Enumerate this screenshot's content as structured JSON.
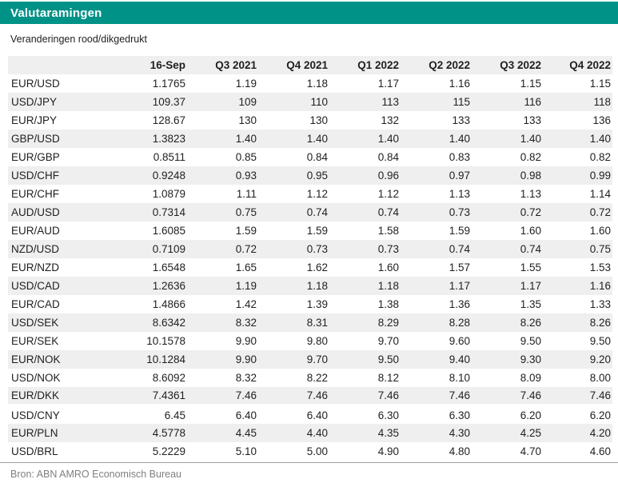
{
  "header": {
    "title": "Valutaramingen",
    "subtitle": "Veranderingen rood/dikgedrukt"
  },
  "colors": {
    "accent_teal": "#009286",
    "row_stripe": "#efefef",
    "title_text": "#ffffff",
    "body_text": "#1f1f1f",
    "source_text": "#7f7f7f"
  },
  "chart_data": {
    "type": "table",
    "title": "Valutaramingen",
    "note": "Veranderingen rood/dikgedrukt",
    "columns": [
      "",
      "16-Sep",
      "Q3 2021",
      "Q4 2021",
      "Q1 2022",
      "Q2 2022",
      "Q3 2022",
      "Q4 2022"
    ],
    "rows": [
      {
        "pair": "EUR/USD",
        "values": [
          "1.1765",
          "1.19",
          "1.18",
          "1.17",
          "1.16",
          "1.15",
          "1.15"
        ]
      },
      {
        "pair": "USD/JPY",
        "values": [
          "109.37",
          "109",
          "110",
          "113",
          "115",
          "116",
          "118"
        ]
      },
      {
        "pair": "EUR/JPY",
        "values": [
          "128.67",
          "130",
          "130",
          "132",
          "133",
          "133",
          "136"
        ]
      },
      {
        "pair": "GBP/USD",
        "values": [
          "1.3823",
          "1.40",
          "1.40",
          "1.40",
          "1.40",
          "1.40",
          "1.40"
        ]
      },
      {
        "pair": "EUR/GBP",
        "values": [
          "0.8511",
          "0.85",
          "0.84",
          "0.84",
          "0.83",
          "0.82",
          "0.82"
        ]
      },
      {
        "pair": "USD/CHF",
        "values": [
          "0.9248",
          "0.93",
          "0.95",
          "0.96",
          "0.97",
          "0.98",
          "0.99"
        ]
      },
      {
        "pair": "EUR/CHF",
        "values": [
          "1.0879",
          "1.11",
          "1.12",
          "1.12",
          "1.13",
          "1.13",
          "1.14"
        ]
      },
      {
        "pair": "AUD/USD",
        "values": [
          "0.7314",
          "0.75",
          "0.74",
          "0.74",
          "0.73",
          "0.72",
          "0.72"
        ]
      },
      {
        "pair": "EUR/AUD",
        "values": [
          "1.6085",
          "1.59",
          "1.59",
          "1.58",
          "1.59",
          "1.60",
          "1.60"
        ]
      },
      {
        "pair": "NZD/USD",
        "values": [
          "0.7109",
          "0.72",
          "0.73",
          "0.73",
          "0.74",
          "0.74",
          "0.75"
        ]
      },
      {
        "pair": "EUR/NZD",
        "values": [
          "1.6548",
          "1.65",
          "1.62",
          "1.60",
          "1.57",
          "1.55",
          "1.53"
        ]
      },
      {
        "pair": "USD/CAD",
        "values": [
          "1.2636",
          "1.19",
          "1.18",
          "1.18",
          "1.17",
          "1.17",
          "1.16"
        ]
      },
      {
        "pair": "EUR/CAD",
        "values": [
          "1.4866",
          "1.42",
          "1.39",
          "1.38",
          "1.36",
          "1.35",
          "1.33"
        ]
      },
      {
        "pair": "USD/SEK",
        "values": [
          "8.6342",
          "8.32",
          "8.31",
          "8.29",
          "8.28",
          "8.26",
          "8.26"
        ]
      },
      {
        "pair": "EUR/SEK",
        "values": [
          "10.1578",
          "9.90",
          "9.80",
          "9.70",
          "9.60",
          "9.50",
          "9.50"
        ]
      },
      {
        "pair": "EUR/NOK",
        "values": [
          "10.1284",
          "9.90",
          "9.70",
          "9.50",
          "9.40",
          "9.30",
          "9.20"
        ]
      },
      {
        "pair": "USD/NOK",
        "values": [
          "8.6092",
          "8.32",
          "8.22",
          "8.12",
          "8.10",
          "8.09",
          "8.00"
        ]
      },
      {
        "pair": "EUR/DKK",
        "values": [
          "7.4361",
          "7.46",
          "7.46",
          "7.46",
          "7.46",
          "7.46",
          "7.46"
        ]
      },
      {
        "pair": "USD/CNY",
        "values": [
          "6.45",
          "6.40",
          "6.40",
          "6.30",
          "6.30",
          "6.20",
          "6.20"
        ],
        "gap_before": true
      },
      {
        "pair": "EUR/PLN",
        "values": [
          "4.5778",
          "4.45",
          "4.40",
          "4.35",
          "4.30",
          "4.25",
          "4.20"
        ]
      },
      {
        "pair": "USD/BRL",
        "values": [
          "5.2229",
          "5.10",
          "5.00",
          "4.90",
          "4.80",
          "4.70",
          "4.60"
        ]
      }
    ],
    "source": "Bron: ABN AMRO Economisch Bureau"
  },
  "footer": {
    "source": "Bron: ABN AMRO Economisch Bureau"
  }
}
